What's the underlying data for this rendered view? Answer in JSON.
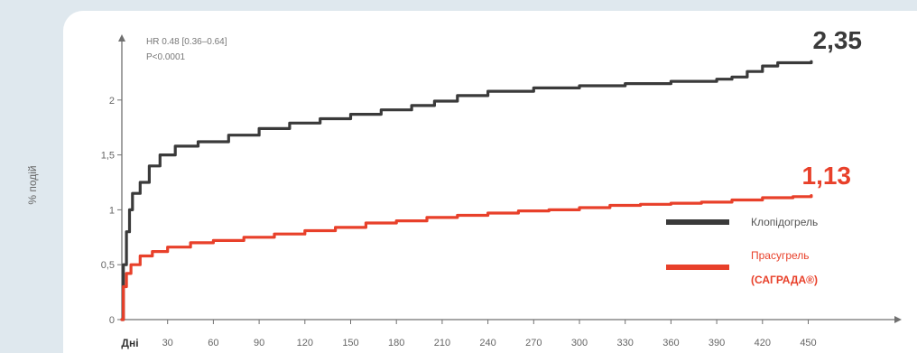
{
  "chart_data": {
    "type": "line",
    "ylabel": "% подій",
    "xlabel": "Дні",
    "xlim": [
      0,
      480
    ],
    "ylim": [
      0,
      2.5
    ],
    "x_ticks": [
      "30",
      "60",
      "90",
      "120",
      "150",
      "180",
      "210",
      "240",
      "270",
      "300",
      "330",
      "360",
      "390",
      "420",
      "450"
    ],
    "y_ticks": [
      {
        "value": 0,
        "label": "0"
      },
      {
        "value": 0.5,
        "label": "0,5"
      },
      {
        "value": 1,
        "label": "1"
      },
      {
        "value": 1.5,
        "label": "1,5"
      },
      {
        "value": 2,
        "label": "2"
      }
    ],
    "annotation": {
      "line1": "HR 0.48 [0.36–0.64]",
      "line2": "P<0.0001"
    },
    "series": [
      {
        "name": "Клопідогрель",
        "color": "#3a3a3a",
        "end_label": "2,35",
        "points": [
          [
            0,
            0
          ],
          [
            1,
            0.5
          ],
          [
            3,
            0.8
          ],
          [
            5,
            1.0
          ],
          [
            7,
            1.15
          ],
          [
            12,
            1.25
          ],
          [
            18,
            1.4
          ],
          [
            25,
            1.5
          ],
          [
            35,
            1.58
          ],
          [
            50,
            1.62
          ],
          [
            70,
            1.68
          ],
          [
            90,
            1.74
          ],
          [
            110,
            1.79
          ],
          [
            130,
            1.83
          ],
          [
            150,
            1.87
          ],
          [
            170,
            1.91
          ],
          [
            190,
            1.95
          ],
          [
            205,
            1.99
          ],
          [
            220,
            2.04
          ],
          [
            240,
            2.08
          ],
          [
            270,
            2.11
          ],
          [
            300,
            2.13
          ],
          [
            330,
            2.15
          ],
          [
            360,
            2.17
          ],
          [
            390,
            2.19
          ],
          [
            400,
            2.21
          ],
          [
            410,
            2.26
          ],
          [
            420,
            2.31
          ],
          [
            430,
            2.34
          ],
          [
            452,
            2.35
          ]
        ]
      },
      {
        "name": "Прасугрель",
        "name_line2": "(САГРАДА®)",
        "color": "#e8402a",
        "end_label": "1,13",
        "points": [
          [
            0,
            0
          ],
          [
            1,
            0.3
          ],
          [
            3,
            0.42
          ],
          [
            6,
            0.5
          ],
          [
            12,
            0.58
          ],
          [
            20,
            0.62
          ],
          [
            30,
            0.66
          ],
          [
            45,
            0.7
          ],
          [
            60,
            0.72
          ],
          [
            80,
            0.75
          ],
          [
            100,
            0.78
          ],
          [
            120,
            0.81
          ],
          [
            140,
            0.84
          ],
          [
            160,
            0.88
          ],
          [
            180,
            0.9
          ],
          [
            200,
            0.93
          ],
          [
            220,
            0.95
          ],
          [
            240,
            0.97
          ],
          [
            260,
            0.99
          ],
          [
            280,
            1.0
          ],
          [
            300,
            1.02
          ],
          [
            320,
            1.04
          ],
          [
            340,
            1.05
          ],
          [
            360,
            1.06
          ],
          [
            380,
            1.07
          ],
          [
            400,
            1.09
          ],
          [
            420,
            1.11
          ],
          [
            440,
            1.12
          ],
          [
            452,
            1.13
          ]
        ]
      }
    ]
  }
}
